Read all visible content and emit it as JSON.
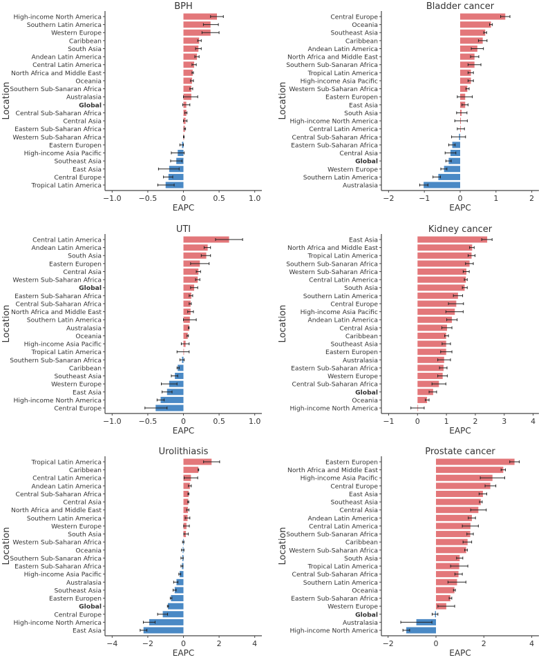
{
  "colors": {
    "positive": "#e3777a",
    "negative": "#4a89c5",
    "errorbar": "#222222",
    "axis": "#444444"
  },
  "chart_data": [
    {
      "type": "bar",
      "orientation": "horizontal",
      "title": "BPH",
      "xlabel": "EAPC",
      "ylabel": "Location",
      "xlim": [
        -1.1,
        1.1
      ],
      "xticks": [
        -1.0,
        -0.5,
        0,
        0.5,
        1.0
      ],
      "xtick_labels": [
        "−1.0",
        "−0.5",
        "0",
        "0.5",
        "1.0"
      ],
      "categories": [
        "High-income North America",
        "Southern Latin America",
        "Western Europe",
        "Caribbean",
        "South Asia",
        "Andean Latin America",
        "Central Latin America",
        "North Africa and Middle East",
        "Oceania",
        "Southern Sub-Sanaran Africa",
        "Australasia",
        "Global",
        "Central Sub-Saharan Africa",
        "Central Asia",
        "Eastern Sub-Saharan Africa",
        "Western Sub-Saharan Africa",
        "Eastern Europen",
        "High-income Asia Pacific",
        "Southeast Asia",
        "East Asia",
        "Central Europe",
        "Tropical Latin America"
      ],
      "values": [
        0.47,
        0.38,
        0.38,
        0.22,
        0.21,
        0.19,
        0.15,
        0.13,
        0.12,
        0.11,
        0.11,
        0.04,
        0.04,
        0.03,
        0.02,
        0.005,
        -0.02,
        -0.08,
        -0.1,
        -0.2,
        -0.21,
        -0.25
      ],
      "ci_low": [
        0.38,
        0.28,
        0.26,
        0.2,
        0.17,
        0.16,
        0.12,
        0.12,
        0.1,
        0.09,
        0.0,
        -0.01,
        0.02,
        0.0,
        0.01,
        0.0,
        -0.05,
        -0.17,
        -0.18,
        -0.35,
        -0.28,
        -0.36
      ],
      "ci_high": [
        0.56,
        0.49,
        0.5,
        0.25,
        0.25,
        0.22,
        0.18,
        0.14,
        0.14,
        0.13,
        0.2,
        0.09,
        0.05,
        0.05,
        0.03,
        0.01,
        0.0,
        0.01,
        -0.02,
        -0.06,
        -0.15,
        -0.13
      ]
    },
    {
      "type": "bar",
      "orientation": "horizontal",
      "title": "Bladder cancer",
      "xlabel": "EAPC",
      "ylabel": "Location",
      "xlim": [
        -2.2,
        2.2
      ],
      "xticks": [
        -2,
        -1,
        0,
        1,
        2
      ],
      "xtick_labels": [
        "−2",
        "−1",
        "0",
        "1",
        "2"
      ],
      "categories": [
        "Central Europe",
        "Oceania",
        "Southeast Asia",
        "Caribbean",
        "Andean Latin America",
        "North Africa and Middle East",
        "Southern Sub-Sanaran Africa",
        "Tropical Latin America",
        "High-income Asia Pacific",
        "Western Sub-Saharan Africa",
        "Eastern Europen",
        "East Asia",
        "South Asia",
        "High-income North America",
        "Central Latin America",
        "Central Sub-Saharan Africa",
        "Eastern Sub-Saharan Africa",
        "Central Asia",
        "Global",
        "Western Europe",
        "Southern Latin America",
        "Australasia"
      ],
      "values": [
        1.26,
        0.86,
        0.7,
        0.63,
        0.48,
        0.4,
        0.4,
        0.3,
        0.3,
        0.2,
        0.14,
        0.14,
        0.04,
        0.02,
        0.01,
        -0.03,
        -0.22,
        -0.27,
        -0.32,
        -0.45,
        -0.61,
        -1.02
      ],
      "ci_low": [
        1.13,
        0.82,
        0.66,
        0.51,
        0.31,
        0.29,
        0.22,
        0.22,
        0.22,
        0.16,
        -0.08,
        0.05,
        -0.1,
        -0.15,
        -0.08,
        -0.24,
        -0.32,
        -0.42,
        -0.4,
        -0.54,
        -0.76,
        -1.13
      ],
      "ci_high": [
        1.39,
        0.9,
        0.74,
        0.75,
        0.65,
        0.52,
        0.58,
        0.37,
        0.37,
        0.25,
        0.34,
        0.22,
        0.19,
        0.2,
        0.12,
        0.15,
        -0.14,
        -0.12,
        -0.25,
        -0.37,
        -0.55,
        -0.9
      ]
    },
    {
      "type": "bar",
      "orientation": "horizontal",
      "title": "UTI",
      "xlabel": "EAPC",
      "ylabel": "Location",
      "xlim": [
        -1.1,
        1.1
      ],
      "xticks": [
        -1.0,
        -0.5,
        0,
        0.5,
        1.0
      ],
      "xtick_labels": [
        "−1.0",
        "−0.5",
        "0",
        "0.5",
        "1.0"
      ],
      "categories": [
        "Central Latin America",
        "Andean Latin America",
        "South Asia",
        "Eastern Europen",
        "Central Asia",
        "Western Sub-Saharan Africa",
        "Global",
        "Eastern Sub-Saharan Africa",
        "Central Sub-Saharan Africa",
        "North Africa and Middle East",
        "Southern Latin America",
        "Australasia",
        "Oceania",
        "High-income Asia Pacific",
        "Tropical Latin America",
        "Southern Sub-Sanaran Africa",
        "Caribbean",
        "Southeast Asia",
        "Western Europe",
        "East Asia",
        "High-income North America",
        "Central Europe"
      ],
      "values": [
        0.64,
        0.34,
        0.32,
        0.23,
        0.21,
        0.2,
        0.15,
        0.11,
        0.1,
        0.1,
        0.09,
        0.08,
        0.06,
        0.03,
        0.0,
        -0.02,
        -0.08,
        -0.12,
        -0.2,
        -0.23,
        -0.32,
        -0.39
      ],
      "ci_low": [
        0.45,
        0.29,
        0.25,
        0.1,
        0.18,
        0.17,
        0.1,
        0.08,
        0.08,
        0.06,
        0.0,
        0.07,
        0.05,
        -0.03,
        -0.09,
        -0.05,
        -0.09,
        -0.17,
        -0.31,
        -0.3,
        -0.37,
        -0.54
      ],
      "ci_high": [
        0.83,
        0.38,
        0.38,
        0.36,
        0.24,
        0.23,
        0.2,
        0.13,
        0.11,
        0.14,
        0.18,
        0.08,
        0.07,
        0.08,
        0.08,
        0.01,
        -0.06,
        -0.08,
        -0.09,
        -0.16,
        -0.27,
        -0.23
      ]
    },
    {
      "type": "bar",
      "orientation": "horizontal",
      "title": "Kidney cancer",
      "xlabel": "EAPC",
      "ylabel": "Location",
      "xlim": [
        -1.25,
        4.2
      ],
      "xticks": [
        -1,
        0,
        1,
        2,
        3,
        4
      ],
      "xtick_labels": [
        "−1",
        "0",
        "1",
        "2",
        "3",
        "4"
      ],
      "categories": [
        "East Asia",
        "North Africa and Middle East",
        "Tropical Latin America",
        "Southern Sub-Sanaran Africa",
        "Western Sub-Saharan Africa",
        "Central Latin America",
        "South Asia",
        "Southern Latin America",
        "Central Europe",
        "High-income Asia Pacific",
        "Andean Latin America",
        "Central Asia",
        "Caribbean",
        "Southeast Asia",
        "Eastern Europen",
        "Australasia",
        "Eastern Sub-Saharan Africa",
        "Western Europe",
        "Central Sub-Saharan Africa",
        "Global",
        "Oceania",
        "High-income North America"
      ],
      "values": [
        2.41,
        1.89,
        1.87,
        1.8,
        1.69,
        1.67,
        1.63,
        1.4,
        1.34,
        1.29,
        1.19,
        1.02,
        0.99,
        0.99,
        0.99,
        0.92,
        0.9,
        0.87,
        0.74,
        0.54,
        0.33,
        0.0
      ],
      "ci_low": [
        2.22,
        1.8,
        1.75,
        1.66,
        1.58,
        1.62,
        1.55,
        1.24,
        1.07,
        0.98,
        1.01,
        0.84,
        0.94,
        0.85,
        0.8,
        0.7,
        0.76,
        0.7,
        0.5,
        0.4,
        0.27,
        -0.23
      ],
      "ci_high": [
        2.58,
        1.96,
        1.99,
        1.93,
        1.79,
        1.72,
        1.72,
        1.56,
        1.59,
        1.58,
        1.37,
        1.19,
        1.07,
        1.14,
        1.19,
        1.14,
        1.02,
        1.03,
        0.98,
        0.66,
        0.4,
        0.23
      ]
    },
    {
      "type": "bar",
      "orientation": "horizontal",
      "title": "Urolithiasis",
      "xlabel": "EAPC",
      "ylabel": "Location",
      "xlim": [
        -4.4,
        4.4
      ],
      "xticks": [
        -4,
        -2,
        0,
        2,
        4
      ],
      "xtick_labels": [
        "−4",
        "−2",
        "0",
        "2",
        "4"
      ],
      "categories": [
        "Tropical Latin America",
        "Caribbean",
        "Central Latin America",
        "Andean Latin America",
        "Central Sub-Saharan Africa",
        "Central Asia",
        "North Africa and Middle East",
        "Southern Latin America",
        "Western Europe",
        "South Asia",
        "Western Sub-Saharan Africa",
        "Oceania",
        "Southern Sub-Sanaran Africa",
        "Eastern Sub-Saharan Africa",
        "High-income Asia Pacific",
        "Australasia",
        "Southeast Asia",
        "Eastern Europen",
        "Global",
        "Central Europe",
        "High-income North America",
        "East Asia"
      ],
      "values": [
        1.58,
        0.84,
        0.42,
        0.36,
        0.29,
        0.27,
        0.25,
        0.23,
        0.17,
        0.14,
        -0.01,
        -0.04,
        -0.06,
        -0.08,
        -0.21,
        -0.39,
        -0.49,
        -0.7,
        -0.87,
        -1.16,
        -1.92,
        -2.24
      ],
      "ci_low": [
        1.13,
        0.82,
        0.04,
        0.28,
        0.25,
        0.24,
        0.18,
        0.1,
        0.01,
        0.02,
        -0.05,
        -0.11,
        -0.14,
        -0.14,
        -0.26,
        -0.55,
        -0.58,
        -0.74,
        -0.9,
        -1.45,
        -2.25,
        -2.43
      ],
      "ci_high": [
        2.03,
        0.86,
        0.8,
        0.44,
        0.31,
        0.3,
        0.31,
        0.36,
        0.33,
        0.27,
        0.03,
        0.03,
        -0.01,
        -0.03,
        -0.15,
        -0.31,
        -0.41,
        -0.65,
        -0.84,
        -0.89,
        -1.59,
        -2.05
      ]
    },
    {
      "type": "bar",
      "orientation": "horizontal",
      "title": "Prostate cancer",
      "xlabel": "EAPC",
      "ylabel": "Location",
      "xlim": [
        -2.28,
        4.3
      ],
      "xticks": [
        -2,
        0,
        2,
        4
      ],
      "xtick_labels": [
        "−2",
        "0",
        "2",
        "4"
      ],
      "categories": [
        "Eastern Europen",
        "North Africa and Middle East",
        "High-income Asia Pacific",
        "Central Europe",
        "East Asia",
        "Southeast Asia",
        "Central Asia",
        "Andean Latin America",
        "Central Latin America",
        "Southern Sub-Sanaran Africa",
        "Caribbean",
        "Western Sub-Saharan Africa",
        "South Asia",
        "Tropical Latin America",
        "Central Sub-Saharan Africa",
        "Southern Latin America",
        "Oceania",
        "Eastern Sub-Saharan Africa",
        "Western Europe",
        "Global",
        "Australasia",
        "High-income North America"
      ],
      "values": [
        3.28,
        2.81,
        2.36,
        2.27,
        1.96,
        1.87,
        1.77,
        1.5,
        1.44,
        1.43,
        1.32,
        1.26,
        0.99,
        0.97,
        0.94,
        0.88,
        0.77,
        0.6,
        0.43,
        -0.04,
        -0.82,
        -1.24
      ],
      "ci_low": [
        3.08,
        2.72,
        1.85,
        2.05,
        1.8,
        1.82,
        1.45,
        1.35,
        1.1,
        1.29,
        1.13,
        1.2,
        0.86,
        0.61,
        0.79,
        0.5,
        0.73,
        0.55,
        0.08,
        -0.16,
        -1.47,
        -1.38
      ],
      "ci_high": [
        3.48,
        2.9,
        2.87,
        2.5,
        2.12,
        1.93,
        2.1,
        1.65,
        1.77,
        1.56,
        1.49,
        1.31,
        1.12,
        1.33,
        1.1,
        1.25,
        0.81,
        0.66,
        0.78,
        0.08,
        -0.17,
        -1.1
      ]
    }
  ]
}
